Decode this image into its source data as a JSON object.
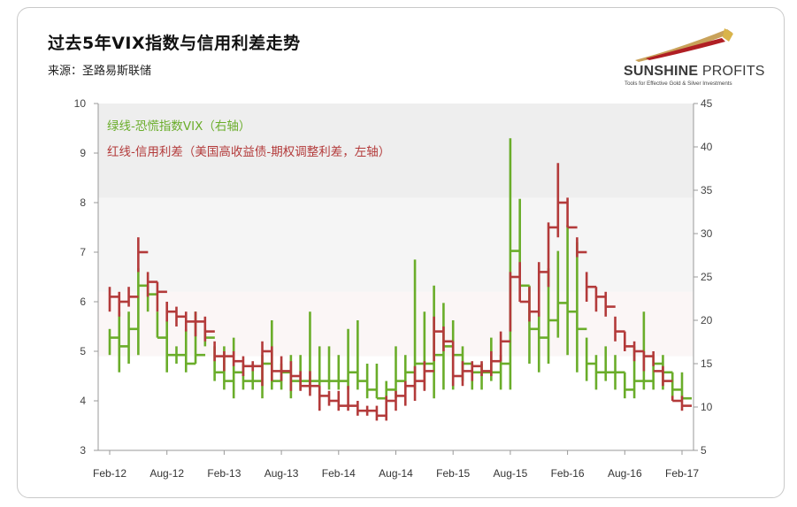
{
  "header": {
    "title": "过去5年VIX指数与信用利差走势",
    "source": "来源：圣路易斯联储"
  },
  "logo": {
    "name_bold": "SUNSHINE",
    "name_light": " PROFITS",
    "tagline": "Tools for Effective Gold & Silver Investments"
  },
  "chart_data": {
    "type": "line",
    "title": "过去5年VIX指数与信用利差走势",
    "subtitle": "来源：圣路易斯联储",
    "x_ticks": [
      "Feb-12",
      "Aug-12",
      "Feb-13",
      "Aug-13",
      "Feb-14",
      "Aug-14",
      "Feb-15",
      "Aug-15",
      "Feb-16",
      "Aug-16",
      "Feb-17"
    ],
    "x_range": [
      "2012-02",
      "2017-02"
    ],
    "y_left": {
      "range": [
        3,
        10
      ],
      "ticks": [
        3,
        4,
        5,
        6,
        7,
        8,
        9,
        10
      ]
    },
    "y_right": {
      "range": [
        5,
        45
      ],
      "ticks": [
        5,
        10,
        15,
        20,
        25,
        30,
        35,
        40,
        45
      ]
    },
    "legend_placement": "top-left",
    "colors": {
      "vix": "#6aad2a",
      "spread": "#b33a3a",
      "band_upper": "#eeeeee",
      "band_mid": "#f5f5f5",
      "band_lower": "#fbf6f6"
    },
    "series": [
      {
        "name": "绿线-恐慌指数VIX（右轴）",
        "axis": "right",
        "style": "high-low bars",
        "x": [
          "2012-02",
          "2012-03",
          "2012-04",
          "2012-05",
          "2012-06",
          "2012-07",
          "2012-08",
          "2012-09",
          "2012-10",
          "2012-11",
          "2012-12",
          "2013-01",
          "2013-02",
          "2013-03",
          "2013-04",
          "2013-05",
          "2013-06",
          "2013-07",
          "2013-08",
          "2013-09",
          "2013-10",
          "2013-11",
          "2013-12",
          "2014-01",
          "2014-02",
          "2014-03",
          "2014-04",
          "2014-05",
          "2014-06",
          "2014-07",
          "2014-08",
          "2014-09",
          "2014-10",
          "2014-11",
          "2014-12",
          "2015-01",
          "2015-02",
          "2015-03",
          "2015-04",
          "2015-05",
          "2015-06",
          "2015-07",
          "2015-08",
          "2015-09",
          "2015-10",
          "2015-11",
          "2015-12",
          "2016-01",
          "2016-02",
          "2016-03",
          "2016-04",
          "2016-05",
          "2016-06",
          "2016-07",
          "2016-08",
          "2016-09",
          "2016-10",
          "2016-11",
          "2016-12",
          "2017-01",
          "2017-02"
        ],
        "low": [
          16,
          14,
          15,
          16,
          21,
          18,
          14,
          15,
          14,
          15,
          17,
          13,
          12,
          11,
          12,
          12,
          11,
          12,
          12,
          11,
          12,
          12,
          11,
          12,
          12,
          12,
          12,
          11,
          11,
          11,
          11,
          12,
          12,
          12,
          11,
          12,
          12,
          13,
          12,
          12,
          13,
          12,
          12,
          25,
          15,
          14,
          15,
          18,
          16,
          14,
          13,
          12,
          13,
          12,
          11,
          11,
          12,
          12,
          12,
          11,
          11
        ],
        "high": [
          19,
          21,
          21,
          26,
          24,
          21,
          20,
          17,
          19,
          21,
          19,
          17,
          17,
          18,
          15,
          15,
          16,
          20,
          15,
          16,
          16,
          21,
          17,
          17,
          16,
          19,
          20,
          15,
          15,
          13,
          17,
          16,
          27,
          21,
          24,
          22,
          20,
          17,
          15,
          15,
          18,
          16,
          41,
          34,
          24,
          21,
          26,
          28,
          31,
          29,
          18,
          16,
          17,
          16,
          14,
          17,
          21,
          16,
          16,
          14,
          14
        ],
        "close": [
          18,
          17,
          19,
          24,
          23,
          18,
          16,
          16,
          15,
          16,
          18,
          14,
          13,
          14,
          13,
          13,
          15,
          13,
          14,
          13,
          13,
          13,
          13,
          13,
          13,
          14,
          13,
          12,
          11,
          12,
          13,
          14,
          15,
          15,
          16,
          17,
          16,
          15,
          14,
          14,
          14,
          15,
          28,
          24,
          19,
          18,
          20,
          22,
          21,
          19,
          15,
          14,
          14,
          14,
          12,
          13,
          13,
          15,
          14,
          12,
          11
        ]
      },
      {
        "name": "红线-信用利差（美国高收益债-期权调整利差，左轴）",
        "axis": "left",
        "style": "high-low bars",
        "x": [
          "2012-02",
          "2012-03",
          "2012-04",
          "2012-05",
          "2012-06",
          "2012-07",
          "2012-08",
          "2012-09",
          "2012-10",
          "2012-11",
          "2012-12",
          "2013-01",
          "2013-02",
          "2013-03",
          "2013-04",
          "2013-05",
          "2013-06",
          "2013-07",
          "2013-08",
          "2013-09",
          "2013-10",
          "2013-11",
          "2013-12",
          "2014-01",
          "2014-02",
          "2014-03",
          "2014-04",
          "2014-05",
          "2014-06",
          "2014-07",
          "2014-08",
          "2014-09",
          "2014-10",
          "2014-11",
          "2014-12",
          "2015-01",
          "2015-02",
          "2015-03",
          "2015-04",
          "2015-05",
          "2015-06",
          "2015-07",
          "2015-08",
          "2015-09",
          "2015-10",
          "2015-11",
          "2015-12",
          "2016-01",
          "2016-02",
          "2016-03",
          "2016-04",
          "2016-05",
          "2016-06",
          "2016-07",
          "2016-08",
          "2016-09",
          "2016-10",
          "2016-11",
          "2016-12",
          "2017-01",
          "2017-02"
        ],
        "low": [
          5.8,
          5.7,
          5.9,
          6.6,
          6.1,
          5.8,
          5.6,
          5.5,
          5.4,
          5.3,
          5.2,
          4.8,
          4.6,
          4.7,
          4.5,
          4.6,
          4.3,
          4.4,
          4.4,
          4.2,
          4.2,
          4.1,
          3.8,
          3.9,
          3.8,
          3.8,
          3.7,
          3.7,
          3.6,
          3.6,
          3.8,
          3.9,
          4.0,
          4.2,
          4.8,
          5.0,
          4.3,
          4.3,
          4.4,
          4.5,
          4.5,
          4.8,
          5.4,
          6.0,
          5.6,
          5.7,
          6.3,
          7.3,
          7.5,
          6.9,
          6.0,
          5.8,
          5.7,
          5.2,
          5.0,
          4.8,
          4.6,
          4.7,
          4.3,
          4.0,
          3.8
        ],
        "high": [
          6.3,
          6.2,
          6.3,
          7.3,
          6.6,
          6.4,
          6.0,
          5.9,
          5.8,
          5.8,
          5.7,
          5.2,
          5.0,
          5.0,
          4.9,
          4.8,
          5.2,
          5.1,
          4.9,
          4.8,
          4.6,
          4.6,
          4.3,
          4.2,
          4.2,
          4.3,
          4.0,
          3.9,
          3.9,
          4.1,
          4.2,
          4.4,
          4.7,
          4.8,
          5.7,
          5.5,
          5.2,
          4.8,
          4.8,
          4.8,
          5.0,
          5.4,
          6.6,
          6.8,
          6.3,
          6.8,
          7.6,
          8.8,
          8.1,
          7.3,
          6.6,
          6.3,
          6.2,
          5.7,
          5.4,
          5.2,
          5.0,
          5.0,
          4.7,
          4.1,
          4.1
        ],
        "close": [
          6.1,
          6.0,
          6.1,
          7.0,
          6.4,
          6.2,
          5.8,
          5.7,
          5.6,
          5.6,
          5.4,
          4.9,
          4.9,
          4.8,
          4.7,
          4.7,
          5.0,
          4.6,
          4.6,
          4.5,
          4.3,
          4.3,
          4.1,
          4.0,
          3.9,
          3.9,
          3.8,
          3.8,
          3.7,
          4.0,
          4.1,
          4.3,
          4.4,
          4.6,
          5.4,
          5.2,
          4.5,
          4.6,
          4.7,
          4.6,
          4.8,
          5.2,
          6.5,
          6.0,
          5.8,
          6.6,
          7.5,
          8.0,
          7.5,
          7.0,
          6.3,
          6.1,
          5.9,
          5.4,
          5.1,
          5.0,
          4.9,
          4.6,
          4.4,
          4.0,
          3.9
        ]
      }
    ]
  }
}
